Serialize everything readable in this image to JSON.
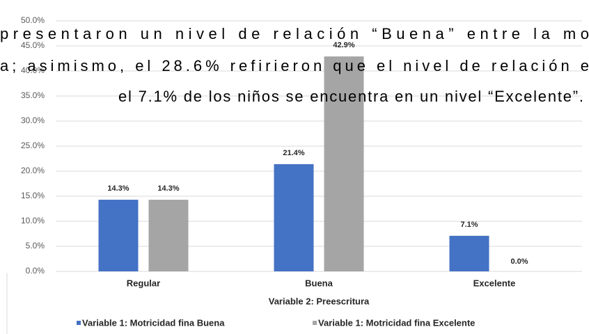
{
  "chart_data": {
    "type": "bar",
    "categories": [
      "Regular",
      "Buena",
      "Excelente"
    ],
    "series": [
      {
        "name": "Variable 1: Motricidad fina Buena",
        "color": "#4472c4",
        "values": [
          14.3,
          21.4,
          7.1
        ],
        "value_labels": [
          "14.3%",
          "21.4%",
          "7.1%"
        ]
      },
      {
        "name": "Variable 1: Motricidad fina Excelente",
        "color": "#a5a5a5",
        "values": [
          14.3,
          42.9,
          0.0
        ],
        "value_labels": [
          "14.3%",
          "42.9%",
          "0.0%"
        ]
      }
    ],
    "xlabel": "Variable 2: Preescritura",
    "ylim": [
      0,
      50
    ],
    "yticks": [
      {
        "value": 0,
        "label": "0.0%"
      },
      {
        "value": 5,
        "label": "5.0%"
      },
      {
        "value": 10,
        "label": "10.0%"
      },
      {
        "value": 15,
        "label": "15.0%"
      },
      {
        "value": 20,
        "label": "20.0%"
      },
      {
        "value": 25,
        "label": "25.0%"
      },
      {
        "value": 30,
        "label": "30.0%"
      },
      {
        "value": 35,
        "label": "35.0%"
      },
      {
        "value": 40,
        "label": "40.0%"
      },
      {
        "value": 45,
        "label": "45.0%"
      },
      {
        "value": 50,
        "label": "50.0%"
      }
    ],
    "grid": true,
    "legend": "bottom",
    "annotations": [
      "presentaron un nivel de relación “Buena” entre la mo",
      "a; asimismo, el 28.6% refirieron que el nivel de relación e",
      "el 7.1% de los niños se encuentra en un nivel “Excelente”."
    ]
  }
}
